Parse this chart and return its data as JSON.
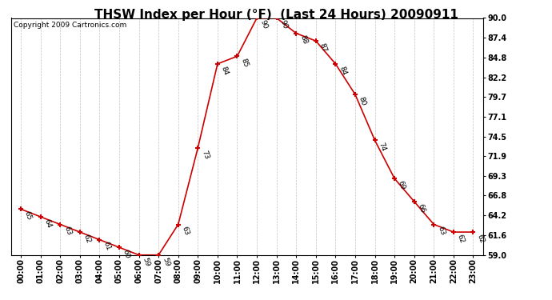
{
  "title": "THSW Index per Hour (°F)  (Last 24 Hours) 20090911",
  "copyright": "Copyright 2009 Cartronics.com",
  "hours": [
    "00:00",
    "01:00",
    "02:00",
    "03:00",
    "04:00",
    "05:00",
    "06:00",
    "07:00",
    "08:00",
    "09:00",
    "10:00",
    "11:00",
    "12:00",
    "13:00",
    "14:00",
    "15:00",
    "16:00",
    "17:00",
    "18:00",
    "19:00",
    "20:00",
    "21:00",
    "22:00",
    "23:00"
  ],
  "values": [
    65,
    64,
    63,
    62,
    61,
    60,
    59,
    59,
    63,
    73,
    84,
    85,
    90,
    90,
    88,
    87,
    84,
    80,
    74,
    69,
    66,
    63,
    62,
    62
  ],
  "line_color": "#cc0000",
  "marker_color": "#cc0000",
  "bg_color": "#ffffff",
  "grid_color": "#bbbbbb",
  "ylim": [
    59.0,
    90.0
  ],
  "yticks": [
    59.0,
    61.6,
    64.2,
    66.8,
    69.3,
    71.9,
    74.5,
    77.1,
    79.7,
    82.2,
    84.8,
    87.4,
    90.0
  ],
  "title_fontsize": 11,
  "label_fontsize": 7,
  "copyright_fontsize": 6.5,
  "annot_fontsize": 6.5
}
